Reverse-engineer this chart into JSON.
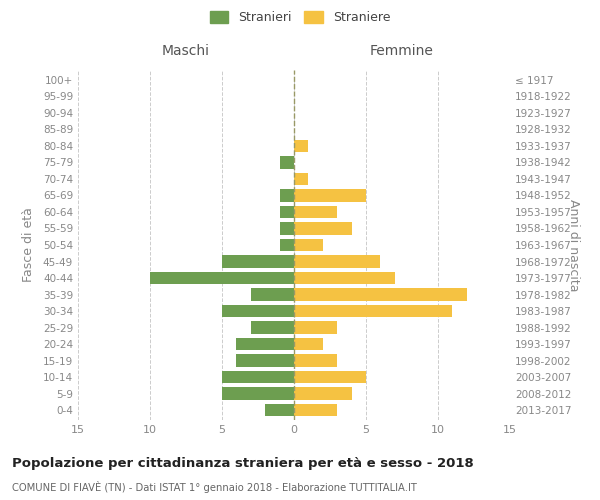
{
  "age_groups": [
    "0-4",
    "5-9",
    "10-14",
    "15-19",
    "20-24",
    "25-29",
    "30-34",
    "35-39",
    "40-44",
    "45-49",
    "50-54",
    "55-59",
    "60-64",
    "65-69",
    "70-74",
    "75-79",
    "80-84",
    "85-89",
    "90-94",
    "95-99",
    "100+"
  ],
  "birth_years": [
    "2013-2017",
    "2008-2012",
    "2003-2007",
    "1998-2002",
    "1993-1997",
    "1988-1992",
    "1983-1987",
    "1978-1982",
    "1973-1977",
    "1968-1972",
    "1963-1967",
    "1958-1962",
    "1953-1957",
    "1948-1952",
    "1943-1947",
    "1938-1942",
    "1933-1937",
    "1928-1932",
    "1923-1927",
    "1918-1922",
    "≤ 1917"
  ],
  "males": [
    2,
    5,
    5,
    4,
    4,
    3,
    5,
    3,
    10,
    5,
    1,
    1,
    1,
    1,
    0,
    1,
    0,
    0,
    0,
    0,
    0
  ],
  "females": [
    3,
    4,
    5,
    3,
    2,
    3,
    11,
    12,
    7,
    6,
    2,
    4,
    3,
    5,
    1,
    0,
    1,
    0,
    0,
    0,
    0
  ],
  "male_color": "#6d9e50",
  "female_color": "#f5c242",
  "background_color": "#ffffff",
  "grid_color": "#cccccc",
  "title": "Popolazione per cittadinanza straniera per età e sesso - 2018",
  "subtitle": "COMUNE DI FIAVÈ (TN) - Dati ISTAT 1° gennaio 2018 - Elaborazione TUTTITALIA.IT",
  "xlabel_left": "Maschi",
  "xlabel_right": "Femmine",
  "ylabel_left": "Fasce di età",
  "ylabel_right": "Anni di nascita",
  "xlim": 15,
  "legend_stranieri": "Stranieri",
  "legend_straniere": "Straniere"
}
